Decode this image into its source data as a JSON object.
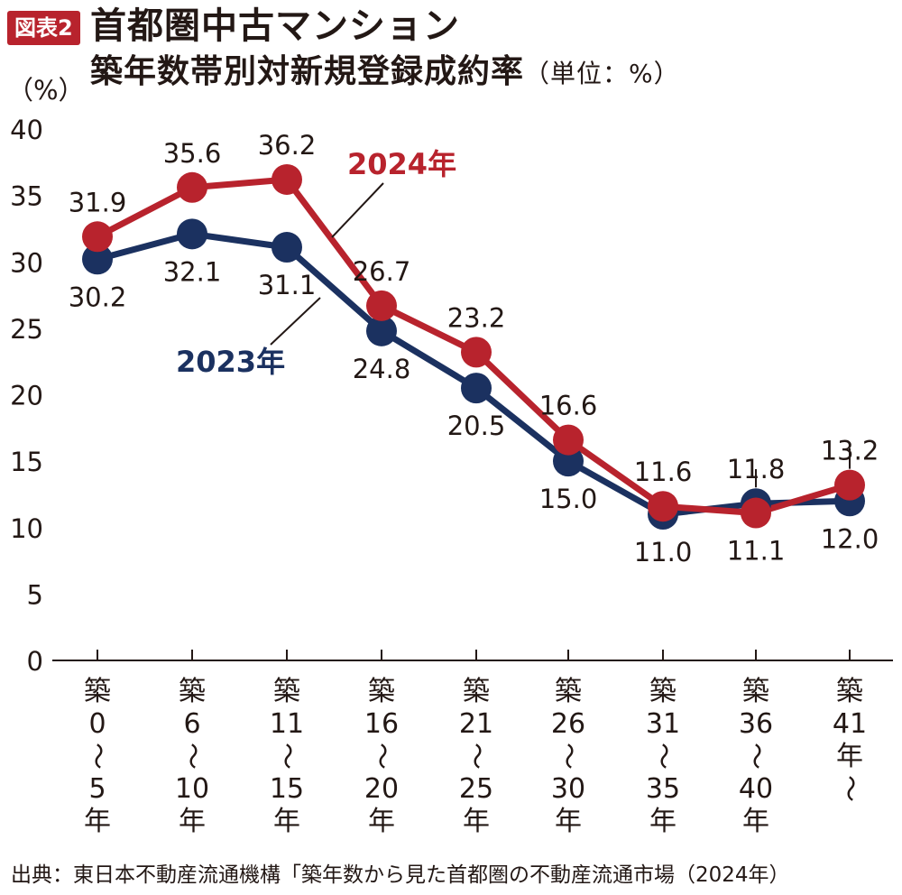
{
  "header": {
    "badge": "図表2",
    "title_line1": "首都圏中古マンション",
    "title_line2": "築年数帯別対新規登録成約率",
    "unit_note": "（単位：%）"
  },
  "source": "出典：東日本不動産流通機構「築年数から見た首都圏の不動産流通市場（2024年）",
  "colors": {
    "series_2023": "#1b3160",
    "series_2024": "#b8232d",
    "axis": "#231815"
  },
  "chart_data": {
    "type": "line",
    "ylabel": "（%）",
    "ylim": [
      0,
      40
    ],
    "yticks": [
      "0",
      "5",
      "10",
      "15",
      "20",
      "25",
      "30",
      "35",
      "40"
    ],
    "categories": [
      [
        "築",
        "0",
        "〜",
        "5",
        "年"
      ],
      [
        "築",
        "6",
        "〜",
        "10",
        "年"
      ],
      [
        "築",
        "11",
        "〜",
        "15",
        "年"
      ],
      [
        "築",
        "16",
        "〜",
        "20",
        "年"
      ],
      [
        "築",
        "21",
        "〜",
        "25",
        "年"
      ],
      [
        "築",
        "26",
        "〜",
        "30",
        "年"
      ],
      [
        "築",
        "31",
        "〜",
        "35",
        "年"
      ],
      [
        "築",
        "36",
        "〜",
        "40",
        "年"
      ],
      [
        "築",
        "41",
        "年",
        "〜"
      ]
    ],
    "series": [
      {
        "name": "2023年",
        "values": [
          30.2,
          32.1,
          31.1,
          24.8,
          20.5,
          15.0,
          11.0,
          11.8,
          12.0
        ],
        "labels": [
          "30.2",
          "32.1",
          "31.1",
          "24.8",
          "20.5",
          "15.0",
          "11.0",
          "11.8",
          "12.0"
        ]
      },
      {
        "name": "2024年",
        "values": [
          31.9,
          35.6,
          36.2,
          26.7,
          23.2,
          16.6,
          11.6,
          11.1,
          13.2
        ],
        "labels": [
          "31.9",
          "35.6",
          "36.2",
          "26.7",
          "23.2",
          "16.6",
          "11.6",
          "11.1",
          "13.2"
        ]
      }
    ],
    "grid": false,
    "legend": "inline"
  }
}
